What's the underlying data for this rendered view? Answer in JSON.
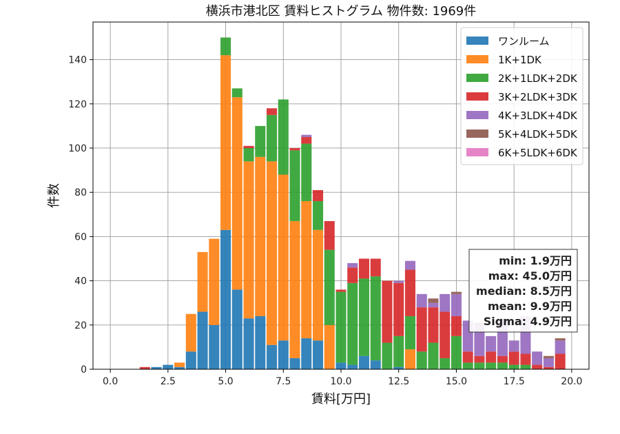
{
  "chart_data": {
    "type": "bar",
    "stacked": true,
    "title": "横浜市港北区 賃料ヒストグラム  物件数: 1969件",
    "xlabel": "賃料[万円]",
    "ylabel": "件数",
    "xlim": [
      -0.75,
      20.75
    ],
    "ylim": [
      0,
      157
    ],
    "xticks": [
      0.0,
      2.5,
      5.0,
      7.5,
      10.0,
      12.5,
      15.0,
      17.5,
      20.0
    ],
    "xtick_labels": [
      "0.0",
      "2.5",
      "5.0",
      "7.5",
      "10.0",
      "12.5",
      "15.0",
      "17.5",
      "20.0"
    ],
    "yticks": [
      0,
      20,
      40,
      60,
      80,
      100,
      120,
      140
    ],
    "ytick_labels": [
      "0",
      "20",
      "40",
      "60",
      "80",
      "100",
      "120",
      "140"
    ],
    "bin_width": 0.5,
    "grid": true,
    "legend_position": "top-right",
    "x": [
      1.5,
      2.0,
      2.5,
      3.0,
      3.5,
      4.0,
      4.5,
      5.0,
      5.5,
      6.0,
      6.5,
      7.0,
      7.5,
      8.0,
      8.5,
      9.0,
      9.5,
      10.0,
      10.5,
      11.0,
      11.5,
      12.0,
      12.5,
      13.0,
      13.5,
      14.0,
      14.5,
      15.0,
      15.5,
      16.0,
      16.5,
      17.0,
      17.5,
      18.0,
      18.5,
      19.0,
      19.5
    ],
    "series": [
      {
        "name": "ワンルーム",
        "color": "#1f77b4",
        "values": [
          0,
          1,
          2,
          1,
          8,
          26,
          20,
          63,
          36,
          23,
          24,
          11,
          13,
          5,
          14,
          13,
          0,
          3,
          2,
          6,
          4,
          0,
          1,
          0,
          0,
          0,
          0,
          0,
          0,
          0,
          0,
          0,
          0,
          0,
          0,
          0,
          0
        ]
      },
      {
        "name": "1K+1DK",
        "color": "#ff7f0e",
        "values": [
          0,
          0,
          0,
          2,
          17,
          27,
          39,
          79,
          87,
          71,
          72,
          83,
          75,
          62,
          62,
          50,
          20,
          0,
          0,
          0,
          0,
          0,
          0,
          9,
          0,
          0,
          0,
          0,
          0,
          0,
          0,
          0,
          0,
          0,
          0,
          0,
          0
        ]
      },
      {
        "name": "2K+1LDK+2DK",
        "color": "#2ca02c",
        "values": [
          0,
          0,
          0,
          0,
          0,
          0,
          0,
          8,
          4,
          6,
          14,
          21,
          34,
          32,
          26,
          13,
          34,
          32,
          37,
          35,
          38,
          12,
          14,
          15,
          8,
          12,
          5,
          15,
          3,
          3,
          3,
          3,
          2,
          2,
          0,
          0,
          0
        ]
      },
      {
        "name": "3K+2LDK+3DK",
        "color": "#d62728",
        "values": [
          1,
          0,
          0,
          0,
          0,
          0,
          0,
          0,
          0,
          1,
          0,
          3,
          0,
          1,
          3,
          5,
          13,
          1,
          7,
          9,
          8,
          28,
          24,
          21,
          20,
          16,
          21,
          9,
          5,
          3,
          5,
          3,
          6,
          5,
          2,
          1,
          7
        ]
      },
      {
        "name": "4K+3LDK+4DK",
        "color": "#9467bd",
        "values": [
          0,
          0,
          0,
          0,
          0,
          0,
          0,
          0,
          0,
          0,
          0,
          0,
          0,
          0,
          1,
          0,
          0,
          0,
          2,
          0,
          0,
          0,
          1,
          4,
          6,
          2,
          8,
          10,
          14,
          14,
          7,
          16,
          5,
          17,
          6,
          4,
          6
        ]
      },
      {
        "name": "5K+4LDK+5DK",
        "color": "#8c564b",
        "values": [
          0,
          0,
          0,
          0,
          0,
          0,
          0,
          0,
          0,
          0,
          0,
          0,
          0,
          0,
          0,
          0,
          0,
          0,
          0,
          0,
          0,
          0,
          0,
          0,
          0,
          2,
          0,
          1,
          0,
          1,
          0,
          1,
          0,
          0,
          0,
          1,
          1
        ]
      },
      {
        "name": "6K+5LDK+6DK",
        "color": "#e377c2",
        "values": [
          0,
          0,
          0,
          0,
          0,
          0,
          0,
          0,
          0,
          0,
          0,
          0,
          0,
          0,
          0,
          0,
          0,
          0,
          0,
          0,
          0,
          0,
          0,
          0,
          0,
          0,
          0,
          0,
          0,
          0,
          0,
          0,
          0,
          0,
          0,
          0,
          0
        ]
      }
    ],
    "stats_box": {
      "lines": [
        "min: 1.9万円",
        "max: 45.0万円",
        "median: 8.5万円",
        "mean: 9.9万円",
        "Sigma: 4.9万円"
      ]
    }
  }
}
